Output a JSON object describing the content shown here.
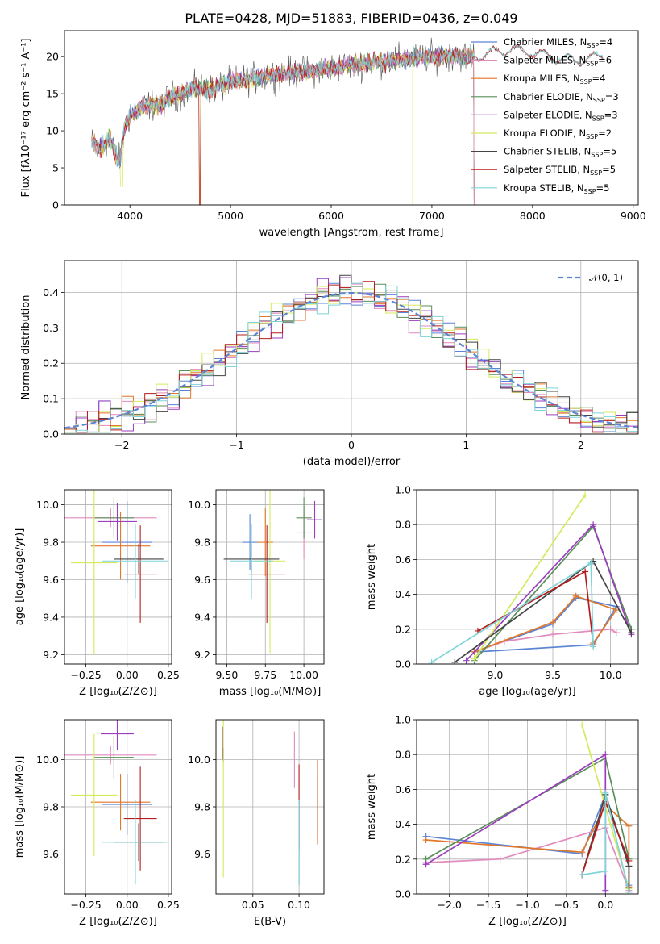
{
  "figure": {
    "title": "PLATE=0428, MJD=51883, FIBERID=0436, z=0.049"
  },
  "models": [
    {
      "name": "Chabrier MILES",
      "nssp": "4",
      "color": "#5b84d6"
    },
    {
      "name": "Salpeter MILES",
      "nssp": "6",
      "color": "#e08abd"
    },
    {
      "name": "Kroupa MILES",
      "nssp": "4",
      "color": "#e0772a"
    },
    {
      "name": "Chabrier ELODIE",
      "nssp": "3",
      "color": "#5a8f5a"
    },
    {
      "name": "Salpeter ELODIE",
      "nssp": "3",
      "color": "#9b3dbf"
    },
    {
      "name": "Kroupa ELODIE",
      "nssp": "2",
      "color": "#d4ea5a"
    },
    {
      "name": "Chabrier STELIB",
      "nssp": "5",
      "color": "#444444"
    },
    {
      "name": "Salpeter STELIB",
      "nssp": "5",
      "color": "#b51c1c"
    },
    {
      "name": "Kroupa STELIB",
      "nssp": "5",
      "color": "#7fd4d8"
    }
  ],
  "chart_data": [
    {
      "id": "spectrum",
      "type": "line",
      "xlabel": "wavelength [Angstrom, rest frame]",
      "ylabel": "Flux [fλ10⁻¹⁷ erg cm⁻² s⁻¹ A⁻¹]",
      "xlim": [
        3350,
        9050
      ],
      "ylim": [
        0,
        23.5
      ],
      "xticks": [
        4000,
        5000,
        6000,
        7000,
        8000,
        9000
      ],
      "yticks": [
        0,
        5,
        10,
        15,
        20
      ],
      "legend_position": "top-right",
      "legend_suffix": "N",
      "legend_sub": "SSP",
      "series_shape": {
        "x": [
          3620,
          3700,
          3800,
          3850,
          3900,
          3950,
          4000,
          4100,
          4200,
          4300,
          4400,
          4500,
          4600,
          4700,
          4800,
          4900,
          5000,
          5200,
          5400,
          5600,
          5800,
          6000,
          6200,
          6400,
          6600,
          6800,
          7000,
          7200,
          7400,
          7420
        ],
        "y": [
          8.5,
          7.5,
          9.0,
          7.0,
          6.0,
          10.5,
          12.0,
          13.0,
          13.5,
          13.5,
          14.5,
          15.0,
          15.5,
          15.8,
          15.5,
          16.0,
          16.5,
          17.0,
          17.5,
          17.8,
          18.0,
          18.5,
          18.8,
          19.2,
          19.5,
          19.7,
          20.0,
          20.2,
          20.0,
          20.0
        ]
      },
      "stelib_tail": {
        "x": [
          7420,
          7600,
          7800,
          8000,
          8200,
          8400,
          8600,
          8700
        ],
        "y": [
          20.0,
          20.5,
          21.0,
          20.5,
          20.0,
          19.5,
          19.8,
          20.3
        ]
      }
    },
    {
      "id": "residuals",
      "type": "area",
      "xlabel": "(data-model)/error",
      "ylabel": "Normed distribution",
      "xlim": [
        -2.5,
        2.5
      ],
      "ylim": [
        0,
        0.49
      ],
      "xticks": [
        -2,
        -1,
        0,
        1,
        2
      ],
      "xticklabels": [
        "−2",
        "−1",
        "0",
        "1",
        "2"
      ],
      "yticks": [
        0.0,
        0.1,
        0.2,
        0.3,
        0.4
      ],
      "yticklabels": [
        "0.0",
        "0.1",
        "0.2",
        "0.3",
        "0.4"
      ],
      "reference_label": "𝒩(0, 1)",
      "bin_width": 0.1,
      "grid": true
    },
    {
      "id": "age_Z",
      "type": "scatter",
      "xlabel": "Z [log₁₀(Z/Z⊙)]",
      "ylabel": "age  [log₁₀(age/yr)]",
      "xlim": [
        -0.38,
        0.27
      ],
      "ylim": [
        9.15,
        10.08
      ],
      "xticks": [
        -0.25,
        0.0,
        0.25
      ],
      "xticklabels": [
        "−0.25",
        "0.00",
        "0.25"
      ],
      "yticks": [
        9.2,
        9.4,
        9.6,
        9.8,
        10.0
      ],
      "yticklabels": [
        "9.2",
        "9.4",
        "9.6",
        "9.8",
        "10.0"
      ],
      "points": [
        {
          "model": 0,
          "x": 0.0,
          "xerr": 0.15,
          "y": 9.8,
          "yerr": 0.22
        },
        {
          "model": 1,
          "x": -0.1,
          "xerr": 0.28,
          "y": 9.93,
          "yerr": 0.05
        },
        {
          "model": 2,
          "x": -0.04,
          "xerr": 0.18,
          "y": 9.78,
          "yerr": 0.18
        },
        {
          "model": 3,
          "x": -0.08,
          "xerr": 0.12,
          "y": 9.93,
          "yerr": 0.11
        },
        {
          "model": 4,
          "x": -0.06,
          "xerr": 0.12,
          "y": 9.91,
          "yerr": 0.1
        },
        {
          "model": 5,
          "x": -0.2,
          "xerr": 0.14,
          "y": 9.69,
          "yerr": 0.49
        },
        {
          "model": 6,
          "x": 0.07,
          "xerr": 0.15,
          "y": 9.71,
          "yerr": 0.08
        },
        {
          "model": 7,
          "x": 0.08,
          "xerr": 0.1,
          "y": 9.63,
          "yerr": 0.26
        },
        {
          "model": 8,
          "x": 0.05,
          "xerr": 0.2,
          "y": 9.7,
          "yerr": 0.2
        }
      ]
    },
    {
      "id": "age_mass",
      "type": "scatter",
      "xlabel": "mass [log₁₀(M/M⊙)]",
      "ylabel": "",
      "xlim": [
        9.43,
        10.13
      ],
      "ylim": [
        9.15,
        10.08
      ],
      "xticks": [
        9.5,
        9.75,
        10.0
      ],
      "xticklabels": [
        "9.50",
        "9.75",
        "10.00"
      ],
      "yticks": [
        9.2,
        9.4,
        9.6,
        9.8,
        10.0
      ],
      "yticklabels": [
        "9.2",
        "9.4",
        "9.6",
        "9.8",
        "10.0"
      ],
      "points": [
        {
          "model": 0,
          "x": 9.65,
          "xerr": 0.05,
          "y": 9.8,
          "yerr": 0.15
        },
        {
          "model": 1,
          "x": 10.0,
          "xerr": 0.05,
          "y": 9.85,
          "yerr": 0.14
        },
        {
          "model": 2,
          "x": 9.75,
          "xerr": 0.05,
          "y": 9.8,
          "yerr": 0.18
        },
        {
          "model": 3,
          "x": 10.0,
          "xerr": 0.05,
          "y": 9.93,
          "yerr": 0.11
        },
        {
          "model": 4,
          "x": 10.07,
          "xerr": 0.05,
          "y": 9.92,
          "yerr": 0.1
        },
        {
          "model": 5,
          "x": 9.78,
          "xerr": 0.1,
          "y": 9.7,
          "yerr": 0.49
        },
        {
          "model": 6,
          "x": 9.66,
          "xerr": 0.18,
          "y": 9.71,
          "yerr": 0.08
        },
        {
          "model": 7,
          "x": 9.76,
          "xerr": 0.12,
          "y": 9.63,
          "yerr": 0.26
        },
        {
          "model": 8,
          "x": 9.66,
          "xerr": 0.14,
          "y": 9.7,
          "yerr": 0.2
        }
      ]
    },
    {
      "id": "weight_age",
      "type": "line",
      "xlabel": "age  [log₁₀(age/yr)]",
      "ylabel": "mass weight",
      "xlim": [
        8.32,
        10.24
      ],
      "ylim": [
        0,
        1
      ],
      "xticks": [
        9.0,
        9.5,
        10.0
      ],
      "xticklabels": [
        "9.0",
        "9.5",
        "10.0"
      ],
      "yticks": [
        0.0,
        0.2,
        0.4,
        0.6,
        0.8,
        1.0
      ],
      "yticklabels": [
        "0.0",
        "0.2",
        "0.4",
        "0.6",
        "0.8",
        "1.0"
      ],
      "series": [
        {
          "model": 0,
          "x": [
            8.82,
            9.5,
            9.7,
            10.05,
            9.85,
            8.85
          ],
          "y": [
            0.07,
            0.23,
            0.38,
            0.33,
            0.11,
            0.07
          ]
        },
        {
          "model": 1,
          "x": [
            8.82,
            9.08,
            9.5,
            10.0,
            10.05
          ],
          "y": [
            0.07,
            0.13,
            0.17,
            0.2,
            0.18
          ]
        },
        {
          "model": 2,
          "x": [
            8.82,
            9.5,
            9.7,
            10.05,
            9.85
          ],
          "y": [
            0.07,
            0.24,
            0.39,
            0.31,
            0.12
          ]
        },
        {
          "model": 3,
          "x": [
            8.82,
            9.85,
            10.18
          ],
          "y": [
            0.02,
            0.79,
            0.2
          ]
        },
        {
          "model": 4,
          "x": [
            8.75,
            9.85,
            10.18
          ],
          "y": [
            0.02,
            0.8,
            0.17
          ]
        },
        {
          "model": 5,
          "x": [
            8.82,
            9.78
          ],
          "y": [
            0.03,
            0.97
          ]
        },
        {
          "model": 6,
          "x": [
            8.65,
            9.85,
            10.18
          ],
          "y": [
            0.01,
            0.59,
            0.18
          ]
        },
        {
          "model": 7,
          "x": [
            8.85,
            9.78,
            9.85
          ],
          "y": [
            0.19,
            0.53,
            0.11
          ]
        },
        {
          "model": 8,
          "x": [
            8.45,
            9.83,
            9.85
          ],
          "y": [
            0.01,
            0.58,
            0.1
          ]
        }
      ]
    },
    {
      "id": "mass_Z",
      "type": "scatter",
      "xlabel": "Z [log₁₀(Z/Z⊙)]",
      "ylabel": "mass [log₁₀(M/M⊙)]",
      "xlim": [
        -0.38,
        0.27
      ],
      "ylim": [
        9.43,
        10.17
      ],
      "xticks": [
        -0.25,
        0.0,
        0.25
      ],
      "xticklabels": [
        "−0.25",
        "0.00",
        "0.25"
      ],
      "yticks": [
        9.6,
        9.8,
        10.0
      ],
      "yticklabels": [
        "9.6",
        "9.8",
        "10.0"
      ],
      "points": [
        {
          "model": 0,
          "x": 0.0,
          "xerr": 0.15,
          "y": 9.81,
          "yerr": 0.13
        },
        {
          "model": 1,
          "x": -0.1,
          "xerr": 0.28,
          "y": 10.02,
          "yerr": 0.04
        },
        {
          "model": 2,
          "x": -0.04,
          "xerr": 0.18,
          "y": 9.82,
          "yerr": 0.12
        },
        {
          "model": 3,
          "x": -0.08,
          "xerr": 0.12,
          "y": 10.01,
          "yerr": 0.09
        },
        {
          "model": 4,
          "x": -0.06,
          "xerr": 0.1,
          "y": 10.11,
          "yerr": 0.07
        },
        {
          "model": 5,
          "x": -0.2,
          "xerr": 0.14,
          "y": 9.85,
          "yerr": 0.26
        },
        {
          "model": 6,
          "x": 0.07,
          "xerr": 0.15,
          "y": 9.65,
          "yerr": 0.08
        },
        {
          "model": 7,
          "x": 0.08,
          "xerr": 0.1,
          "y": 9.75,
          "yerr": 0.22
        },
        {
          "model": 8,
          "x": 0.05,
          "xerr": 0.2,
          "y": 9.65,
          "yerr": 0.18
        }
      ]
    },
    {
      "id": "mass_ebv",
      "type": "scatter",
      "xlabel": "E(B-V)",
      "ylabel": "",
      "xlim": [
        0.01,
        0.127
      ],
      "ylim": [
        9.43,
        10.17
      ],
      "xticks": [
        0.05,
        0.1
      ],
      "xticklabels": [
        "0.05",
        "0.10"
      ],
      "yticks": [
        9.6,
        9.8,
        10.0
      ],
      "yticklabels": [
        "9.6",
        "9.8",
        "10.0"
      ],
      "points": [
        {
          "model": 0,
          "x": 0.12,
          "xerr": 0,
          "y": 9.82,
          "yerr": 0.12
        },
        {
          "model": 1,
          "x": 0.095,
          "xerr": 0,
          "y": 10.0,
          "yerr": 0.12
        },
        {
          "model": 2,
          "x": 0.12,
          "xerr": 0,
          "y": 9.82,
          "yerr": 0.18
        },
        {
          "model": 3,
          "x": 0.018,
          "xerr": 0,
          "y": 10.02,
          "yerr": 0.03
        },
        {
          "model": 4,
          "x": 0.017,
          "xerr": 0,
          "y": 10.07,
          "yerr": 0.07
        },
        {
          "model": 5,
          "x": 0.018,
          "xerr": 0,
          "y": 9.85,
          "yerr": 0.35
        },
        {
          "model": 6,
          "x": 0.1,
          "xerr": 0,
          "y": 9.65,
          "yerr": 0.18
        },
        {
          "model": 7,
          "x": 0.1,
          "xerr": 0,
          "y": 9.8,
          "yerr": 0.18
        },
        {
          "model": 8,
          "x": 0.1,
          "xerr": 0,
          "y": 9.65,
          "yerr": 0.18
        }
      ]
    },
    {
      "id": "weight_Z",
      "type": "line",
      "xlabel": "Z [log₁₀(Z/Z⊙)]",
      "ylabel": "mass weight",
      "xlim": [
        -2.42,
        0.42
      ],
      "ylim": [
        0,
        1
      ],
      "xticks": [
        -2.0,
        -1.5,
        -1.0,
        -0.5,
        0.0
      ],
      "xticklabels": [
        "−2.0",
        "−1.5",
        "−1.0",
        "−0.5",
        "0.0"
      ],
      "yticks": [
        0.0,
        0.2,
        0.4,
        0.6,
        0.8,
        1.0
      ],
      "yticklabels": [
        "0.0",
        "0.2",
        "0.4",
        "0.6",
        "0.8",
        "1.0"
      ],
      "series": [
        {
          "model": 0,
          "x": [
            -2.3,
            -0.3,
            0.0,
            0.3,
            0.3
          ],
          "y": [
            0.33,
            0.23,
            0.57,
            0.16,
            0.05
          ]
        },
        {
          "model": 1,
          "x": [
            -2.3,
            -1.35,
            0.0,
            0.3
          ],
          "y": [
            0.18,
            0.2,
            0.38,
            0.02
          ]
        },
        {
          "model": 2,
          "x": [
            -2.3,
            -0.3,
            0.0,
            0.3,
            0.3
          ],
          "y": [
            0.31,
            0.24,
            0.51,
            0.39,
            0.04
          ]
        },
        {
          "model": 3,
          "x": [
            -2.3,
            0.0,
            0.3
          ],
          "y": [
            0.2,
            0.78,
            0.2
          ]
        },
        {
          "model": 4,
          "x": [
            -2.3,
            0.0,
            0.0
          ],
          "y": [
            0.17,
            0.8,
            0.02
          ]
        },
        {
          "model": 5,
          "x": [
            -0.3,
            0.3
          ],
          "y": [
            0.97,
            0.03
          ]
        },
        {
          "model": 6,
          "x": [
            -0.3,
            0.0,
            0.3,
            0.3
          ],
          "y": [
            0.11,
            0.57,
            0.16,
            0.01
          ]
        },
        {
          "model": 7,
          "x": [
            -0.3,
            0.0,
            0.3
          ],
          "y": [
            0.11,
            0.53,
            0.19
          ]
        },
        {
          "model": 8,
          "x": [
            -0.3,
            0.0,
            0.0,
            0.3
          ],
          "y": [
            0.11,
            0.13,
            0.58,
            0.01
          ]
        }
      ]
    }
  ]
}
